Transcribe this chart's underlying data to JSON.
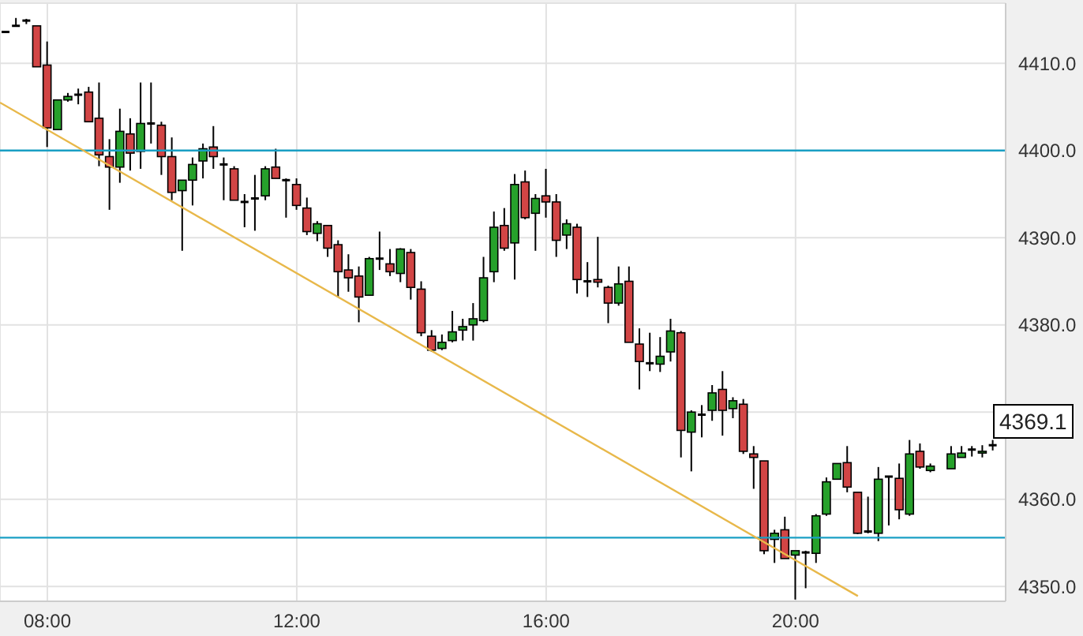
{
  "chart_data": {
    "type": "candlestick",
    "xlim": [
      7.24,
      23.37
    ],
    "ylim": [
      4348.3,
      4416.9
    ],
    "xticks": [
      {
        "value": 8,
        "label": "08:00"
      },
      {
        "value": 12,
        "label": "12:00"
      },
      {
        "value": 16,
        "label": "16:00"
      },
      {
        "value": 20,
        "label": "20:00"
      }
    ],
    "yticks": [
      {
        "value": 4350,
        "label": "4350.0"
      },
      {
        "value": 4360,
        "label": "4360.0"
      },
      {
        "value": 4370,
        "label": null
      },
      {
        "value": 4380,
        "label": "4380.0"
      },
      {
        "value": 4390,
        "label": "4390.0"
      },
      {
        "value": 4400,
        "label": "4400.0"
      },
      {
        "value": 4410,
        "label": "4410.0"
      }
    ],
    "grid": true,
    "x": [
      7.333,
      7.5,
      7.667,
      7.833,
      8,
      8.167,
      8.333,
      8.5,
      8.667,
      8.833,
      9,
      9.167,
      9.333,
      9.5,
      9.667,
      9.833,
      10,
      10.167,
      10.333,
      10.5,
      10.667,
      10.833,
      11,
      11.167,
      11.333,
      11.5,
      11.667,
      11.833,
      12,
      12.167,
      12.333,
      12.5,
      12.667,
      12.833,
      13,
      13.167,
      13.333,
      13.5,
      13.667,
      13.833,
      14,
      14.167,
      14.333,
      14.5,
      14.667,
      14.833,
      15,
      15.167,
      15.333,
      15.5,
      15.667,
      15.833,
      16,
      16.167,
      16.333,
      16.5,
      16.667,
      16.833,
      17,
      17.167,
      17.333,
      17.5,
      17.667,
      17.833,
      18,
      18.167,
      18.333,
      18.5,
      18.667,
      18.833,
      19,
      19.167,
      19.333,
      19.5,
      19.667,
      19.833,
      20,
      20.167,
      20.333,
      20.5,
      20.667,
      20.833,
      21,
      21.167,
      21.333,
      21.5,
      21.667,
      21.833,
      22,
      22.167,
      22.5,
      22.667,
      22.833,
      23,
      23.167
    ],
    "ohlc": [
      [
        4413.6,
        4413.6,
        4413.6,
        4413.6
      ],
      [
        4414.3,
        4415.2,
        4414.3,
        4414.3
      ],
      [
        4414.9,
        4415.1,
        4414.5,
        4414.9
      ],
      [
        4414.3,
        4414.3,
        4409.6,
        4409.6
      ],
      [
        4409.8,
        4412.5,
        4400.4,
        4402.6
      ],
      [
        4402.4,
        4405.8,
        4402.4,
        4405.8
      ],
      [
        4405.8,
        4406.6,
        4405.6,
        4406.2
      ],
      [
        4406.4,
        4407.1,
        4405.3,
        4406.4
      ],
      [
        4406.7,
        4407.3,
        4403.3,
        4403.3
      ],
      [
        4403.7,
        4407.8,
        4398.2,
        4399.5
      ],
      [
        4399.3,
        4401.3,
        4393.2,
        4398.1
      ],
      [
        4398.1,
        4404.8,
        4396.3,
        4402.2
      ],
      [
        4401.9,
        4403.7,
        4397.7,
        4399.7
      ],
      [
        4399.9,
        4407.8,
        4397.9,
        4403.1
      ],
      [
        4403.1,
        4407.8,
        4400.8,
        4403.1
      ],
      [
        4402.9,
        4403.3,
        4397.2,
        4399.3
      ],
      [
        4399.3,
        4401.5,
        4394.3,
        4395.2
      ],
      [
        4395.4,
        4396.6,
        4388.5,
        4396.6
      ],
      [
        4396.6,
        4399.2,
        4393.7,
        4398.4
      ],
      [
        4398.8,
        4400.8,
        4396.8,
        4400.2
      ],
      [
        4400.4,
        4402.8,
        4397.9,
        4399.3
      ],
      [
        4398.4,
        4399.2,
        4394.3,
        4398.4
      ],
      [
        4397.9,
        4398.2,
        4394.3,
        4394.3
      ],
      [
        4394.1,
        4395.0,
        4391.2,
        4394.1
      ],
      [
        4394.5,
        4397.2,
        4390.8,
        4394.5
      ],
      [
        4394.8,
        4398.2,
        4394.3,
        4397.9
      ],
      [
        4398.1,
        4400.2,
        4396.8,
        4396.8
      ],
      [
        4396.6,
        4396.8,
        4392.3,
        4396.6
      ],
      [
        4396.1,
        4396.8,
        4393.2,
        4393.7
      ],
      [
        4393.4,
        4394.6,
        4390.3,
        4390.7
      ],
      [
        4390.5,
        4391.9,
        4389.6,
        4391.6
      ],
      [
        4391.4,
        4391.4,
        4387.8,
        4388.8
      ],
      [
        4389.2,
        4389.7,
        4383.2,
        4386.1
      ],
      [
        4386.3,
        4388.1,
        4383.8,
        4385.4
      ],
      [
        4385.6,
        4386.7,
        4380.3,
        4383.2
      ],
      [
        4383.4,
        4387.8,
        4383.4,
        4387.6
      ],
      [
        4387.6,
        4390.7,
        4386.3,
        4387.6
      ],
      [
        4387.0,
        4388.7,
        4385.6,
        4386.1
      ],
      [
        4385.9,
        4388.8,
        4384.9,
        4388.7
      ],
      [
        4388.3,
        4388.7,
        4382.9,
        4384.3
      ],
      [
        4384.1,
        4385.0,
        4378.7,
        4379.1
      ],
      [
        4378.7,
        4379.4,
        4376.9,
        4377.1
      ],
      [
        4377.3,
        4378.9,
        4377.1,
        4378.0
      ],
      [
        4378.2,
        4381.6,
        4378.0,
        4379.2
      ],
      [
        4379.4,
        4380.7,
        4378.2,
        4379.8
      ],
      [
        4380.0,
        4382.5,
        4378.2,
        4380.7
      ],
      [
        4380.5,
        4387.8,
        4380.3,
        4385.4
      ],
      [
        4386.1,
        4393.0,
        4384.9,
        4391.2
      ],
      [
        4391.4,
        4393.4,
        4388.5,
        4388.8
      ],
      [
        4389.4,
        4397.3,
        4385.2,
        4396.1
      ],
      [
        4396.4,
        4397.7,
        4392.1,
        4392.3
      ],
      [
        4392.8,
        4395.0,
        4388.5,
        4394.5
      ],
      [
        4394.8,
        4397.9,
        4392.3,
        4394.1
      ],
      [
        4394.1,
        4395.0,
        4387.8,
        4389.7
      ],
      [
        4390.3,
        4392.1,
        4388.7,
        4391.6
      ],
      [
        4391.2,
        4391.6,
        4383.6,
        4385.2
      ],
      [
        4385.0,
        4387.2,
        4383.2,
        4385.0
      ],
      [
        4385.2,
        4390.1,
        4384.3,
        4384.9
      ],
      [
        4384.3,
        4384.5,
        4380.2,
        4382.5
      ],
      [
        4382.5,
        4386.7,
        4382.2,
        4384.7
      ],
      [
        4385.0,
        4386.7,
        4378.0,
        4378.0
      ],
      [
        4377.8,
        4379.6,
        4372.6,
        4375.8
      ],
      [
        4375.6,
        4379.1,
        4374.7,
        4375.6
      ],
      [
        4375.5,
        4378.6,
        4374.6,
        4376.4
      ],
      [
        4376.9,
        4380.7,
        4375.8,
        4379.3
      ],
      [
        4379.1,
        4379.3,
        4364.8,
        4367.9
      ],
      [
        4367.7,
        4370.2,
        4363.2,
        4370.0
      ],
      [
        4369.7,
        4370.8,
        4367.1,
        4369.7
      ],
      [
        4370.2,
        4373.1,
        4369.0,
        4372.2
      ],
      [
        4372.6,
        4374.7,
        4367.3,
        4370.2
      ],
      [
        4370.4,
        4371.7,
        4369.3,
        4371.3
      ],
      [
        4370.9,
        4371.5,
        4365.2,
        4365.5
      ],
      [
        4365.2,
        4366.1,
        4361.2,
        4364.8
      ],
      [
        4364.4,
        4364.4,
        4353.7,
        4354.1
      ],
      [
        4355.4,
        4356.5,
        4352.7,
        4356.1
      ],
      [
        4356.5,
        4358.0,
        4353.2,
        4353.2
      ],
      [
        4353.6,
        4354.1,
        4348.5,
        4354.1
      ],
      [
        4353.9,
        4354.1,
        4349.8,
        4353.9
      ],
      [
        4353.8,
        4358.3,
        4352.7,
        4358.1
      ],
      [
        4358.3,
        4362.5,
        4358.1,
        4362.0
      ],
      [
        4362.3,
        4364.1,
        4362.3,
        4364.1
      ],
      [
        4364.2,
        4366.1,
        4360.8,
        4361.4
      ],
      [
        4360.8,
        4360.8,
        4356.0,
        4356.1
      ],
      [
        4356.3,
        4360.3,
        4356.1,
        4356.3
      ],
      [
        4356.1,
        4363.7,
        4355.2,
        4362.3
      ],
      [
        4362.6,
        4362.6,
        4357.0,
        4362.6
      ],
      [
        4362.4,
        4364.1,
        4357.7,
        4358.8
      ],
      [
        4358.3,
        4366.8,
        4358.1,
        4365.2
      ],
      [
        4365.5,
        4366.4,
        4363.5,
        4363.7
      ],
      [
        4363.3,
        4364.1,
        4363.1,
        4363.8
      ],
      [
        4363.5,
        4366.1,
        4363.5,
        4365.2
      ],
      [
        4364.8,
        4366.1,
        4364.8,
        4365.3
      ],
      [
        4365.7,
        4366.1,
        4364.9,
        4365.7
      ],
      [
        4365.3,
        4366.2,
        4364.8,
        4365.5
      ],
      [
        4366.2,
        4366.8,
        4365.6,
        4366.2
      ]
    ],
    "colors": [
      "#000000",
      "#000000",
      "#000000",
      "#d24545",
      "#d24545",
      "#26a12b",
      "#26a12b",
      "#000000",
      "#d24545",
      "#d24545",
      "#d24545",
      "#26a12b",
      "#d24545",
      "#26a12b",
      "#000000",
      "#d24545",
      "#d24545",
      "#26a12b",
      "#26a12b",
      "#26a12b",
      "#d24545",
      "#000000",
      "#d24545",
      "#000000",
      "#000000",
      "#26a12b",
      "#d24545",
      "#000000",
      "#d24545",
      "#d24545",
      "#26a12b",
      "#d24545",
      "#d24545",
      "#d24545",
      "#d24545",
      "#26a12b",
      "#000000",
      "#d24545",
      "#26a12b",
      "#d24545",
      "#d24545",
      "#d24545",
      "#26a12b",
      "#26a12b",
      "#26a12b",
      "#26a12b",
      "#26a12b",
      "#26a12b",
      "#d24545",
      "#26a12b",
      "#d24545",
      "#26a12b",
      "#d24545",
      "#d24545",
      "#26a12b",
      "#d24545",
      "#000000",
      "#d24545",
      "#d24545",
      "#26a12b",
      "#d24545",
      "#d24545",
      "#000000",
      "#26a12b",
      "#26a12b",
      "#d24545",
      "#26a12b",
      "#000000",
      "#26a12b",
      "#d24545",
      "#26a12b",
      "#d24545",
      "#d24545",
      "#d24545",
      "#26a12b",
      "#d24545",
      "#26a12b",
      "#000000",
      "#26a12b",
      "#26a12b",
      "#26a12b",
      "#d24545",
      "#d24545",
      "#000000",
      "#26a12b",
      "#000000",
      "#d24545",
      "#26a12b",
      "#d24545",
      "#26a12b",
      "#26a12b",
      "#26a12b",
      "#000000",
      "#26a12b",
      "#000000"
    ],
    "series": [
      {
        "type": "line",
        "x": [
          7.24,
          21.0
        ],
        "values": [
          4405.5,
          4348.9
        ],
        "color": "#e8b84a"
      }
    ],
    "ref_lines": [
      {
        "axis": "y",
        "value": 4400,
        "color": "#1a9fc4"
      },
      {
        "axis": "y",
        "value": 4355.6,
        "color": "#1a9fc4"
      }
    ],
    "annotations": [
      "4369.1"
    ]
  }
}
